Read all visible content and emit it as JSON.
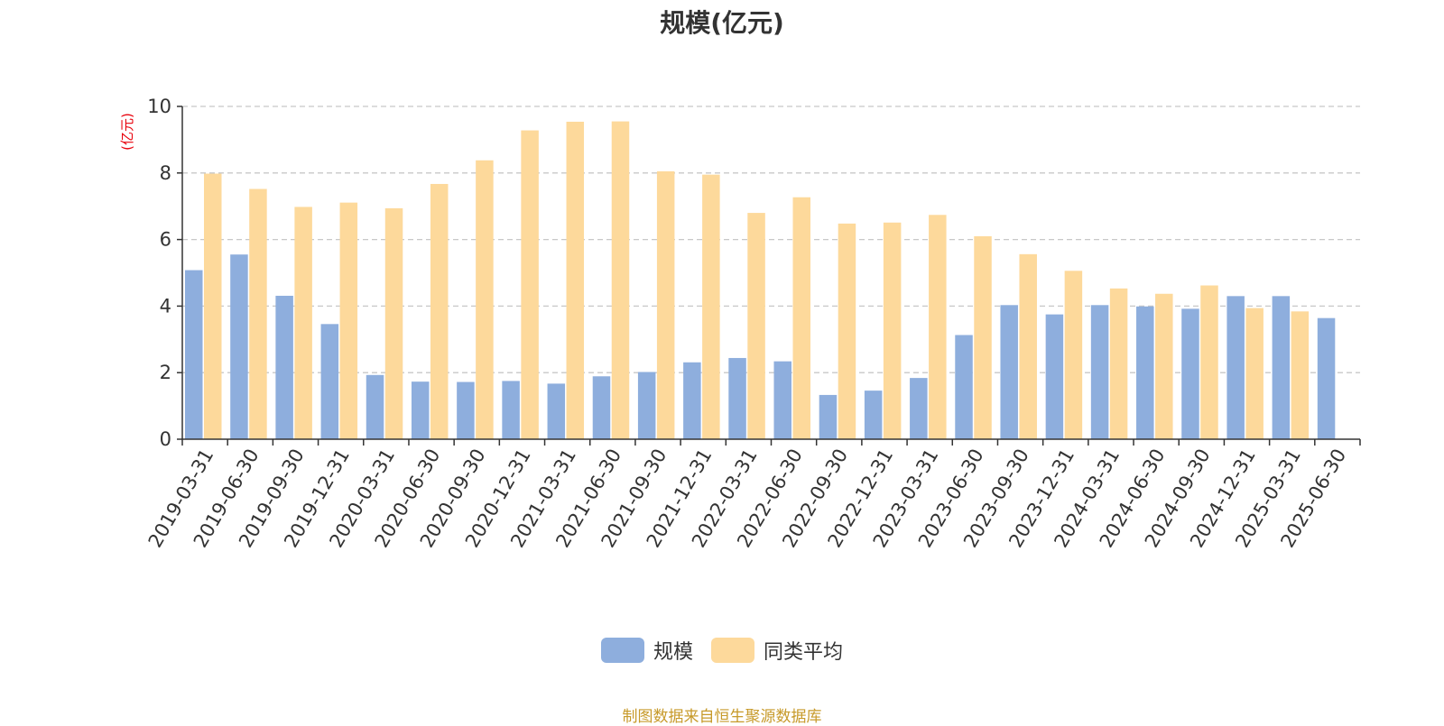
{
  "chart_data": {
    "type": "bar",
    "title": "规模(亿元)",
    "ylabel": "(亿元)",
    "xlabel": "",
    "ylim": [
      0,
      10
    ],
    "yticks": [
      0,
      2,
      4,
      6,
      8,
      10
    ],
    "grid": true,
    "legend_position": "bottom-center",
    "categories": [
      "2019-03-31",
      "2019-06-30",
      "2019-09-30",
      "2019-12-31",
      "2020-03-31",
      "2020-06-30",
      "2020-09-30",
      "2020-12-31",
      "2021-03-31",
      "2021-06-30",
      "2021-09-30",
      "2021-12-31",
      "2022-03-31",
      "2022-06-30",
      "2022-09-30",
      "2022-12-31",
      "2023-03-31",
      "2023-06-30",
      "2023-09-30",
      "2023-12-31",
      "2024-03-31",
      "2024-06-30",
      "2024-09-30",
      "2024-12-31",
      "2025-03-31",
      "2025-06-30"
    ],
    "series": [
      {
        "name": "规模",
        "color": "#8eaedd",
        "values": [
          5.08,
          5.55,
          4.31,
          3.46,
          1.93,
          1.73,
          1.72,
          1.75,
          1.67,
          1.89,
          2.02,
          2.31,
          2.44,
          2.34,
          1.33,
          1.46,
          1.84,
          3.13,
          4.03,
          3.75,
          4.03,
          3.99,
          3.92,
          4.3,
          4.3,
          3.64
        ]
      },
      {
        "name": "同类平均",
        "color": "#fdd99b",
        "values": [
          7.98,
          7.52,
          6.98,
          7.11,
          6.94,
          7.67,
          8.38,
          9.28,
          9.54,
          9.55,
          8.05,
          7.95,
          6.8,
          7.27,
          6.48,
          6.51,
          6.74,
          6.1,
          5.56,
          5.06,
          4.53,
          4.37,
          4.62,
          3.94,
          3.84,
          null
        ]
      }
    ]
  },
  "colors": {
    "axis": "#333333",
    "grid": "#c8c8c8",
    "unit_label": "#e8000b",
    "source_text": "#c79a2a"
  },
  "source_text": "制图数据来自恒生聚源数据库"
}
